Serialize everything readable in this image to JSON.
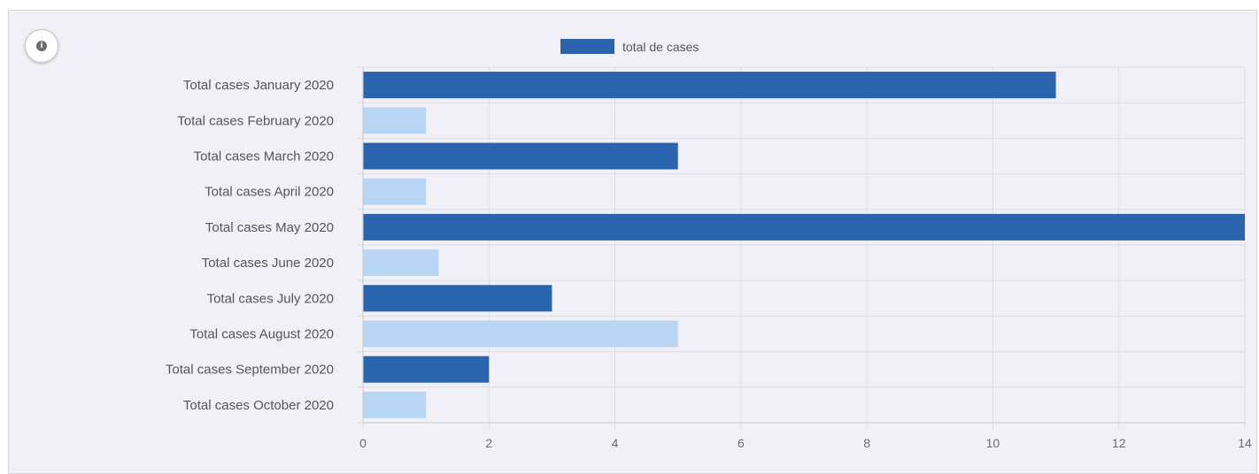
{
  "chart_data": {
    "type": "bar",
    "orientation": "horizontal",
    "title": "",
    "xlabel": "",
    "ylabel": "",
    "categories": [
      "Total cases January 2020",
      "Total cases February 2020",
      "Total cases March 2020",
      "Total cases April 2020",
      "Total cases May 2020",
      "Total cases June 2020",
      "Total cases July 2020",
      "Total cases August 2020",
      "Total cases September 2020",
      "Total cases October 2020"
    ],
    "series": [
      {
        "name": "total de cases",
        "values": [
          11,
          1,
          5,
          1,
          14,
          1.2,
          3,
          5,
          2,
          1
        ]
      }
    ],
    "xlim": [
      0,
      14
    ],
    "xticks": [
      "0",
      "2",
      "4",
      "6",
      "8",
      "10",
      "12",
      "14"
    ],
    "grid": true,
    "legend_position": "top-center",
    "colors": {
      "dark_bar": "#2a63ae",
      "light_bar": "#b8d5f3",
      "grid": "#dcdce3",
      "axis": "#c8c8d0"
    }
  },
  "info_button": {
    "icon": "info-icon",
    "glyph": "i"
  }
}
